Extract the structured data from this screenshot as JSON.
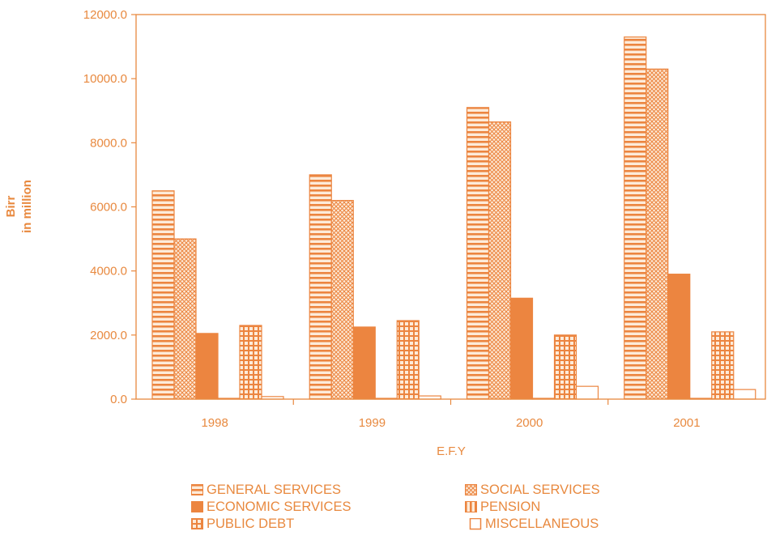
{
  "chart_data": {
    "type": "bar",
    "title": "",
    "xlabel": "E.F.Y",
    "ylabel": [
      "Birr",
      "in million"
    ],
    "categories": [
      "1998",
      "1999",
      "2000",
      "2001"
    ],
    "ylim": [
      0,
      12000
    ],
    "yticks": [
      "0.0",
      "2000.0",
      "4000.0",
      "6000.0",
      "8000.0",
      "10000.0",
      "12000.0"
    ],
    "ytick_values": [
      0,
      2000,
      4000,
      6000,
      8000,
      10000,
      12000
    ],
    "grid": false,
    "legend_position": "bottom",
    "series": [
      {
        "name": "GENERAL SERVICES",
        "pattern": "horizontal-stripes",
        "values": [
          6500,
          7000,
          9100,
          11300
        ]
      },
      {
        "name": "SOCIAL SERVICES",
        "pattern": "crosshatch",
        "values": [
          5000,
          6200,
          8650,
          10300
        ]
      },
      {
        "name": "ECONOMIC SERVICES",
        "pattern": "solid",
        "values": [
          2050,
          2250,
          3150,
          3900
        ]
      },
      {
        "name": "PENSION",
        "pattern": "vertical-stripes",
        "values": [
          20,
          20,
          20,
          20
        ]
      },
      {
        "name": "PUBLIC DEBT",
        "pattern": "grid",
        "values": [
          2300,
          2450,
          2000,
          2100
        ]
      },
      {
        "name": "MISCELLANEOUS",
        "pattern": "empty",
        "values": [
          80,
          100,
          400,
          300
        ]
      }
    ]
  },
  "colors": {
    "accent": "#e8893f",
    "fill_solid": "#ec8540",
    "hatch_bg": "#fdebd9",
    "background": "#ffffff"
  }
}
